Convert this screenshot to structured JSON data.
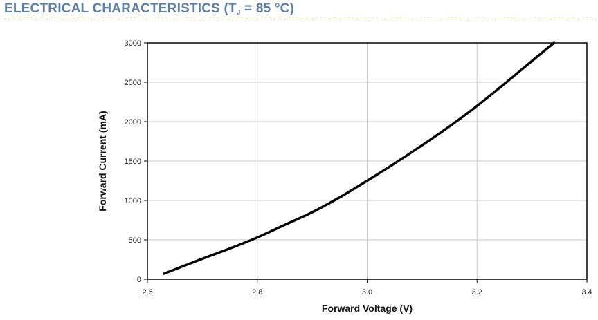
{
  "header": {
    "title_prefix": "ELECTRICAL CHARACTERISTICS (T",
    "title_subscript": "J",
    "title_suffix": " = 85 °C)"
  },
  "colors": {
    "header_text": "#5b7fa6",
    "header_rule": "#c9c36a",
    "grid": "#c8c8c8",
    "curve": "#000000"
  },
  "chart_data": {
    "type": "line",
    "title": "",
    "xlabel": "Forward Voltage (V)",
    "ylabel": "Forward Current (mA)",
    "xlim": [
      2.6,
      3.4
    ],
    "ylim": [
      0,
      3000
    ],
    "x_ticks": [
      "2.6",
      "2.8",
      "3.0",
      "3.2",
      "3.4"
    ],
    "y_ticks": [
      "0",
      "500",
      "1000",
      "1500",
      "2000",
      "2500",
      "3000"
    ],
    "grid": true,
    "legend": "none",
    "series": [
      {
        "x": [
          2.63,
          2.7,
          2.75,
          2.8,
          2.85,
          2.9,
          2.95,
          3.0,
          3.05,
          3.1,
          3.15,
          3.2,
          3.25,
          3.3,
          3.34
        ],
        "y": [
          70,
          260,
          390,
          530,
          690,
          850,
          1040,
          1250,
          1470,
          1700,
          1940,
          2200,
          2480,
          2770,
          3000
        ]
      }
    ]
  }
}
